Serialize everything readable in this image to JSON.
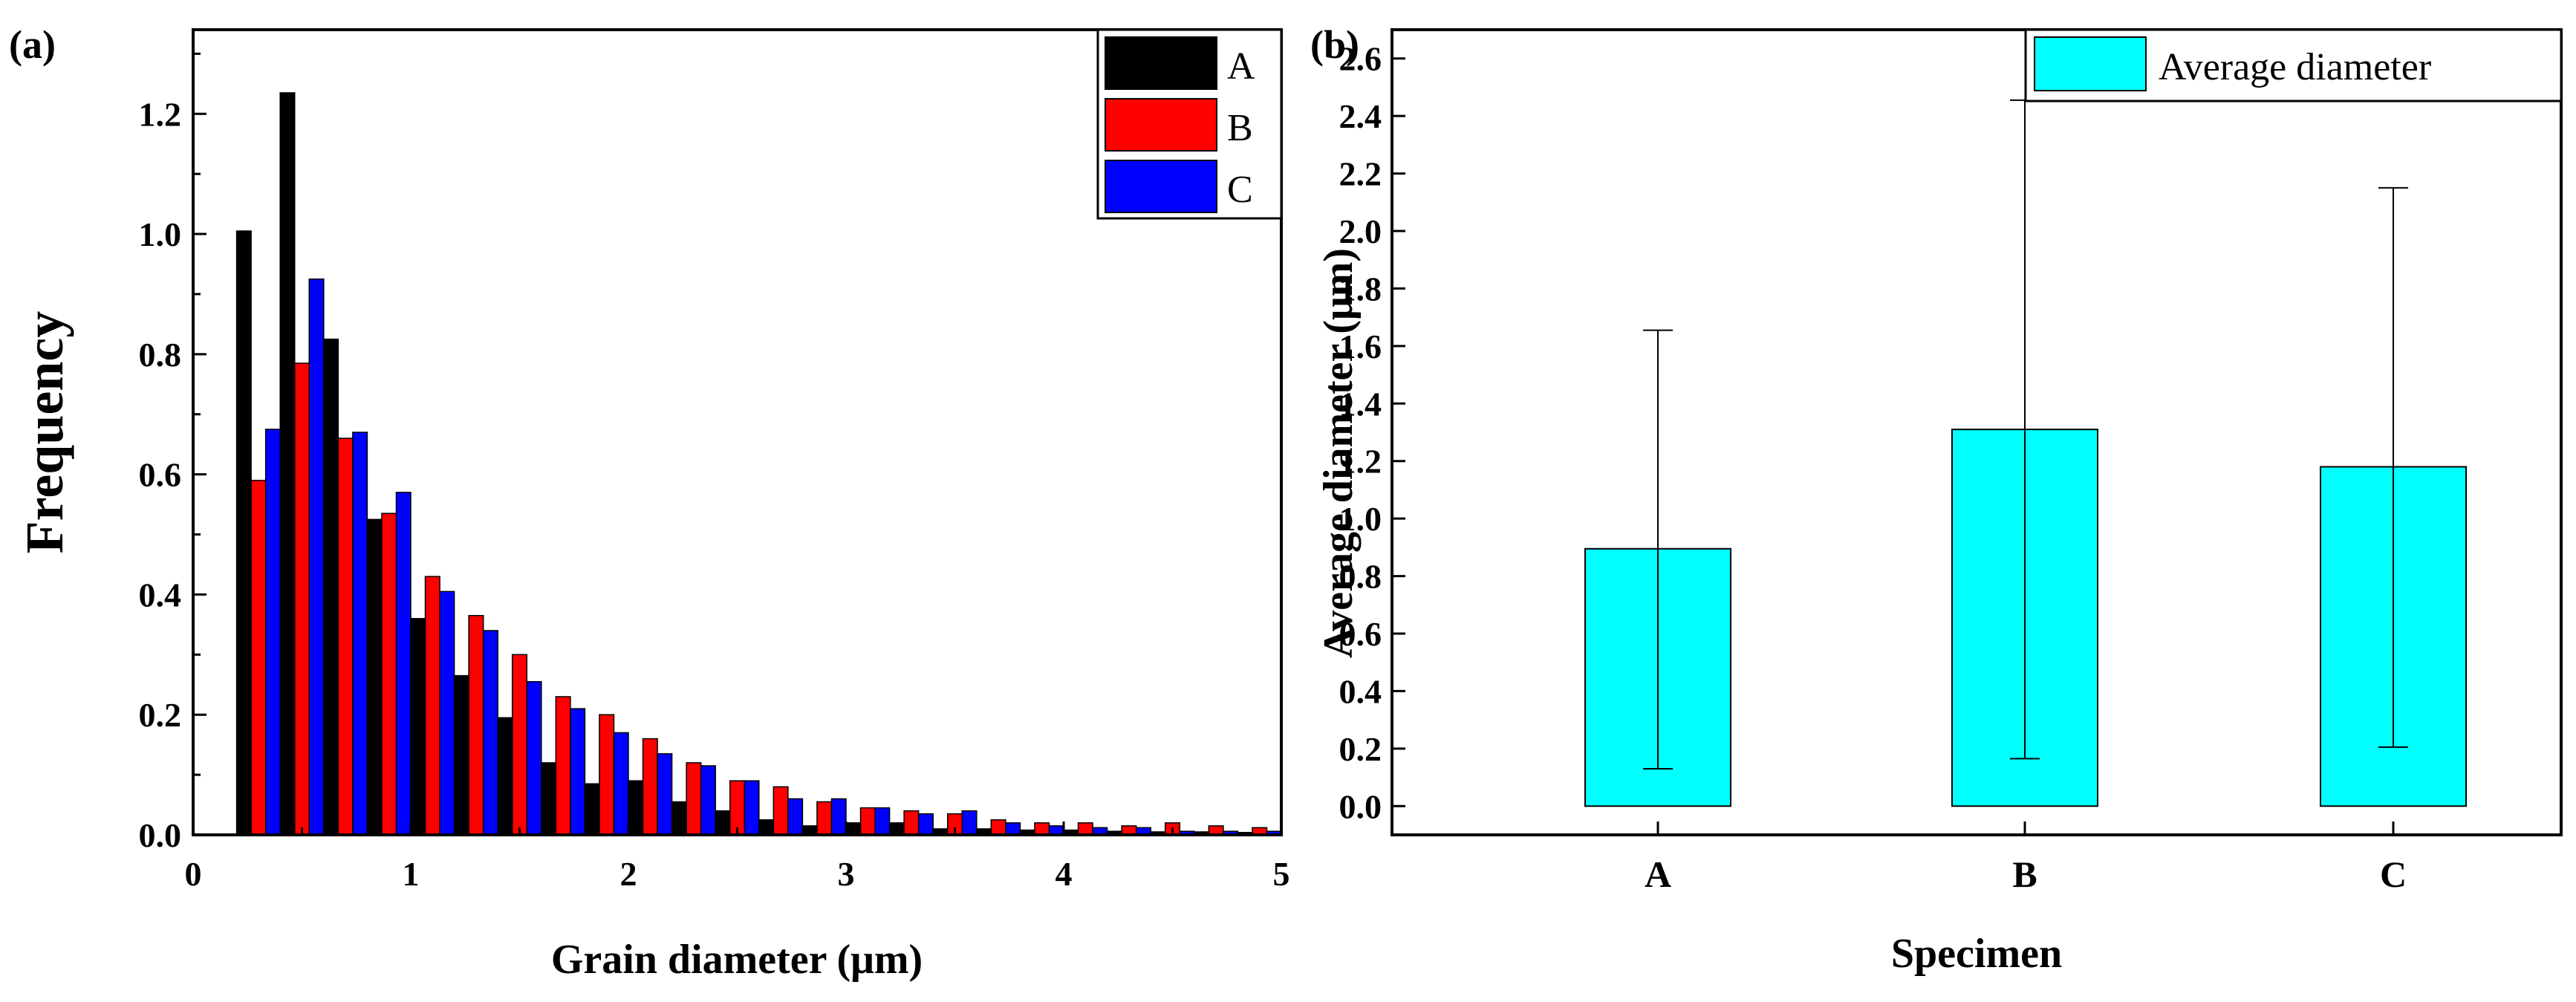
{
  "chart_data": [
    {
      "panel_label": "(a)",
      "type": "bar",
      "xlabel": "Grain diameter (μm)",
      "ylabel": "Frequency",
      "xlim": [
        0,
        5
      ],
      "ylim": [
        0,
        1.34
      ],
      "xticks": [
        "0",
        "1",
        "2",
        "3",
        "4",
        "5"
      ],
      "yticks": [
        "0.0",
        "0.2",
        "0.4",
        "0.6",
        "0.8",
        "1.0",
        "1.2"
      ],
      "legend_position": "top-right",
      "bin_width": 0.2,
      "bins": [
        0.3,
        0.5,
        0.7,
        0.9,
        1.1,
        1.3,
        1.5,
        1.7,
        1.9,
        2.1,
        2.3,
        2.5,
        2.7,
        2.9,
        3.1,
        3.3,
        3.5,
        3.7,
        3.9,
        4.1,
        4.3,
        4.5,
        4.7,
        4.9
      ],
      "series": [
        {
          "name": "A",
          "color": "#000000",
          "values": [
            1.005,
            1.235,
            0.825,
            0.525,
            0.36,
            0.265,
            0.195,
            0.12,
            0.085,
            0.09,
            0.055,
            0.04,
            0.025,
            0.015,
            0.02,
            0.02,
            0.01,
            0.01,
            0.008,
            0.008,
            0.006,
            0.005,
            0.005,
            0.004
          ]
        },
        {
          "name": "B",
          "color": "#ff0000",
          "values": [
            0.59,
            0.785,
            0.66,
            0.535,
            0.43,
            0.365,
            0.3,
            0.23,
            0.2,
            0.16,
            0.12,
            0.09,
            0.08,
            0.055,
            0.045,
            0.04,
            0.035,
            0.025,
            0.02,
            0.02,
            0.015,
            0.02,
            0.015,
            0.012
          ]
        },
        {
          "name": "C",
          "color": "#0000ff",
          "values": [
            0.675,
            0.925,
            0.67,
            0.57,
            0.405,
            0.34,
            0.255,
            0.21,
            0.17,
            0.135,
            0.115,
            0.09,
            0.06,
            0.06,
            0.045,
            0.035,
            0.04,
            0.02,
            0.015,
            0.012,
            0.012,
            0.006,
            0.006,
            0.006
          ]
        }
      ]
    },
    {
      "panel_label": "(b)",
      "type": "bar",
      "xlabel": "Specimen",
      "ylabel": "Average diameter (μm)",
      "ylim": [
        -0.1,
        2.7
      ],
      "yticks": [
        "0.0",
        "0.2",
        "0.4",
        "0.6",
        "0.8",
        "1.0",
        "1.2",
        "1.4",
        "1.6",
        "1.8",
        "2.0",
        "2.2",
        "2.4",
        "2.6"
      ],
      "categories": [
        "A",
        "B",
        "C"
      ],
      "legend_position": "top-right",
      "series": [
        {
          "name": "Average diameter",
          "color": "#00ffff",
          "values": [
            0.895,
            1.31,
            1.18
          ],
          "error_low": [
            0.13,
            0.165,
            0.205
          ],
          "error_high": [
            1.655,
            2.455,
            2.15
          ]
        }
      ]
    }
  ]
}
